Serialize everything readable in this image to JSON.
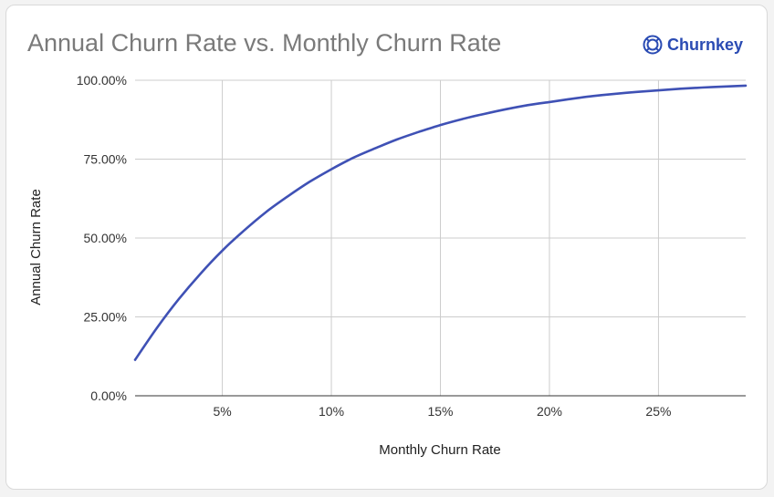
{
  "brand": {
    "name": "Churnkey",
    "logo_icon": "churnkey-logo-icon"
  },
  "chart_data": {
    "type": "line",
    "title": "Annual Churn Rate vs. Monthly Churn Rate",
    "xlabel": "Monthly Churn Rate",
    "ylabel": "Annual Churn Rate",
    "xlim": [
      1,
      29
    ],
    "ylim": [
      0,
      100
    ],
    "x_ticks": [
      5,
      10,
      15,
      20,
      25
    ],
    "x_tick_labels": [
      "5%",
      "10%",
      "15%",
      "20%",
      "25%"
    ],
    "y_ticks": [
      0,
      25,
      50,
      75,
      100
    ],
    "y_tick_labels": [
      "0.00%",
      "25.00%",
      "50.00%",
      "75.00%",
      "100.00%"
    ],
    "grid": true,
    "legend": "none",
    "series_color": "#3f51b5",
    "x": [
      1,
      2,
      3,
      4,
      5,
      6,
      7,
      8,
      9,
      10,
      11,
      12,
      13,
      14,
      15,
      16,
      17,
      18,
      19,
      20,
      21,
      22,
      23,
      24,
      25,
      26,
      27,
      28,
      29
    ],
    "values": [
      11.4,
      21.5,
      30.6,
      38.7,
      46.0,
      52.4,
      58.2,
      63.2,
      67.8,
      71.8,
      75.4,
      78.4,
      81.2,
      83.6,
      85.8,
      87.7,
      89.3,
      90.8,
      92.1,
      93.1,
      94.1,
      95.0,
      95.7,
      96.3,
      96.8,
      97.3,
      97.7,
      98.0,
      98.3
    ]
  }
}
